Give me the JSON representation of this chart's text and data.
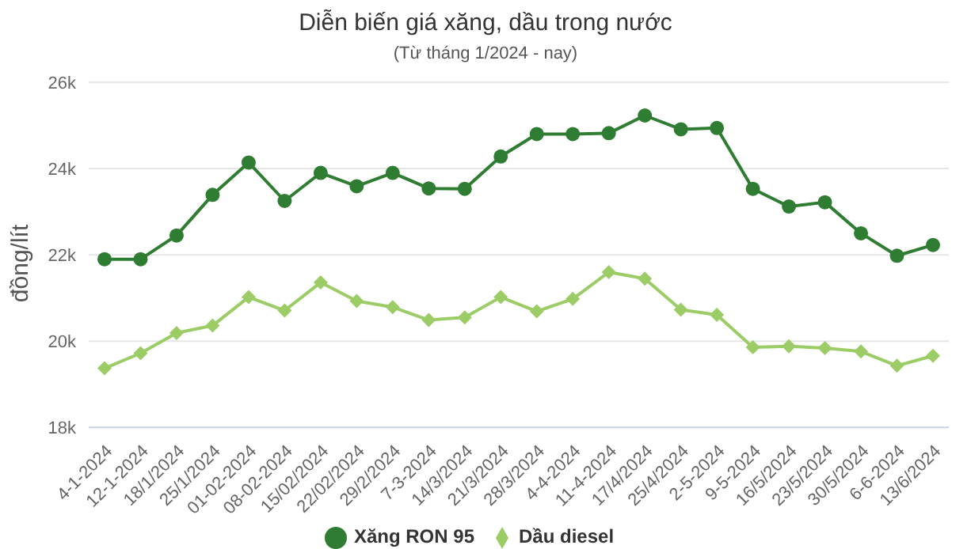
{
  "chart_data": {
    "type": "line",
    "title": "Diễn biến giá xăng, dầu trong nước",
    "subtitle": "(Từ tháng 1/2024 - nay)",
    "ylabel": "đồng/lít",
    "categories": [
      "4-1-2024",
      "12-1-2024",
      "18/1/2024",
      "25/1/2024",
      "01-02-2024",
      "08-02-2024",
      "15/02/2024",
      "22/02/2024",
      "29/2/2024",
      "7-3-2024",
      "14/3/2024",
      "21/3/2024",
      "28/3/2024",
      "4-4-2024",
      "11-4-2024",
      "17/4/2024",
      "25/4/2024",
      "2-5-2024",
      "9-5-2024",
      "16/5/2024",
      "23/5/2024",
      "30/5/2024",
      "6-6-2024",
      "13/6/2024"
    ],
    "series": [
      {
        "name": "Xăng RON 95",
        "color": "#2e7d32",
        "marker": "circle",
        "values": [
          21900,
          21900,
          22450,
          23390,
          24140,
          23250,
          23900,
          23590,
          23900,
          23540,
          23530,
          24280,
          24800,
          24800,
          24820,
          25230,
          24910,
          24940,
          23530,
          23120,
          23220,
          22500,
          21980,
          22230
        ]
      },
      {
        "name": "Dầu diesel",
        "color": "#9ccc65",
        "marker": "diamond",
        "values": [
          19370,
          19720,
          20190,
          20360,
          21020,
          20710,
          21360,
          20930,
          20790,
          20490,
          20550,
          21020,
          20690,
          20980,
          21600,
          21450,
          20730,
          20610,
          19860,
          19880,
          19840,
          19760,
          19430,
          19660
        ]
      }
    ],
    "ylim": [
      18000,
      26000
    ],
    "yticks": [
      {
        "value": 18000,
        "label": "18k"
      },
      {
        "value": 20000,
        "label": "20k"
      },
      {
        "value": 22000,
        "label": "22k"
      },
      {
        "value": 24000,
        "label": "24k"
      },
      {
        "value": 26000,
        "label": "26k"
      }
    ],
    "grid": "y",
    "legend": "bottom",
    "line_style": "solid"
  }
}
